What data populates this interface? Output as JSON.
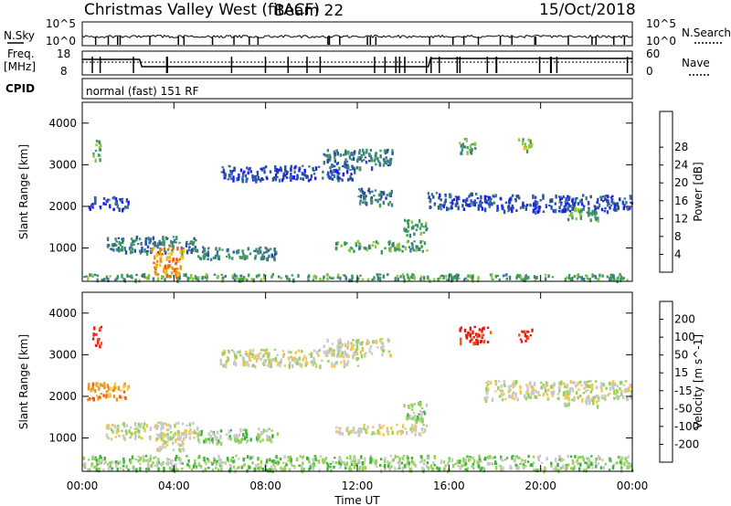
{
  "header": {
    "station": "Christmas Valley West (fitACF)",
    "beam": "Beam 22",
    "date": "15/Oct/2018"
  },
  "strips": {
    "nsky_label": "N.Sky",
    "nsearch_label": "N.Search",
    "nsky_ticks": [
      "10^5",
      "10^0"
    ],
    "nsearch_ticks": [
      "10^5",
      "10^0"
    ],
    "freq_label_1": "Freq.",
    "freq_label_2": "[MHz]",
    "freq_ticks": [
      "18",
      "8"
    ],
    "nave_label": "Nave",
    "nave_ticks": [
      "60",
      "0"
    ],
    "cpid_label": "CPID",
    "cpid_value": "normal (fast) 151 RF"
  },
  "x_axis": {
    "label": "Time UT",
    "ticks": [
      "00:00",
      "04:00",
      "08:00",
      "12:00",
      "16:00",
      "20:00",
      "00:00"
    ]
  },
  "colors": {
    "power": [
      "#1a1aff",
      "#2a4fa0",
      "#3c7a8c",
      "#3e9a5a",
      "#8cc83c",
      "#f0c020",
      "#f08c14",
      "#f05a14",
      "#e82014"
    ],
    "velocity": [
      "#e81414",
      "#f05a14",
      "#f09614",
      "#f0c850",
      "#c8c8c8",
      "#96d25a",
      "#3cb43c",
      "#3c8c64",
      "#2846b4"
    ]
  },
  "chart_data": [
    {
      "type": "heatmap",
      "name": "power-panel",
      "ylabel": "Slant Range [km]",
      "yticks": [
        "1000",
        "2000",
        "3000",
        "4000"
      ],
      "ylim": [
        200,
        4500
      ],
      "xlim_hours": [
        0,
        24
      ],
      "colorbar_label": "Power [dB]",
      "colorbar_ticks": [
        "4",
        "8",
        "12",
        "16",
        "20",
        "24",
        "28"
      ],
      "features": [
        {
          "t0": 0.0,
          "t1": 24.0,
          "r0": 250,
          "r1": 400,
          "level": 3
        },
        {
          "t0": 0.2,
          "t1": 2.0,
          "r0": 1950,
          "r1": 2250,
          "level": 1
        },
        {
          "t0": 0.4,
          "t1": 0.8,
          "r0": 3100,
          "r1": 3600,
          "level": 3
        },
        {
          "t0": 1.0,
          "t1": 5.0,
          "r0": 900,
          "r1": 1300,
          "level": 2
        },
        {
          "t0": 3.0,
          "t1": 4.4,
          "r0": 350,
          "r1": 1050,
          "level": 6
        },
        {
          "t0": 5.0,
          "t1": 8.5,
          "r0": 750,
          "r1": 1050,
          "level": 2
        },
        {
          "t0": 6.0,
          "t1": 12.0,
          "r0": 2650,
          "r1": 3000,
          "level": 1
        },
        {
          "t0": 10.5,
          "t1": 13.5,
          "r0": 2950,
          "r1": 3400,
          "level": 2
        },
        {
          "t0": 12.0,
          "t1": 13.5,
          "r0": 2050,
          "r1": 2450,
          "level": 2
        },
        {
          "t0": 11.0,
          "t1": 15.0,
          "r0": 950,
          "r1": 1200,
          "level": 3
        },
        {
          "t0": 14.0,
          "t1": 15.0,
          "r0": 1300,
          "r1": 1700,
          "level": 3
        },
        {
          "t0": 15.0,
          "t1": 17.5,
          "r0": 1950,
          "r1": 2350,
          "level": 1
        },
        {
          "t0": 16.4,
          "t1": 17.2,
          "r0": 3300,
          "r1": 3650,
          "level": 3
        },
        {
          "t0": 19.0,
          "t1": 19.6,
          "r0": 3350,
          "r1": 3650,
          "level": 4
        },
        {
          "t0": 17.5,
          "t1": 24.0,
          "r0": 1900,
          "r1": 2300,
          "level": 1
        },
        {
          "t0": 21.0,
          "t1": 22.5,
          "r0": 1700,
          "r1": 2000,
          "level": 3
        }
      ]
    },
    {
      "type": "heatmap",
      "name": "velocity-panel",
      "ylabel": "Slant Range [km]",
      "yticks": [
        "1000",
        "2000",
        "3000",
        "4000"
      ],
      "ylim": [
        200,
        4500
      ],
      "xlim_hours": [
        0,
        24
      ],
      "colorbar_label": "Velocity [m s^-1]",
      "colorbar_ticks": [
        "-200",
        "-100",
        "-50",
        "-15",
        "15",
        "50",
        "100",
        "200"
      ],
      "features": [
        {
          "t0": 0.0,
          "t1": 24.0,
          "r0": 250,
          "r1": 600,
          "level": 5
        },
        {
          "t0": 0.2,
          "t1": 2.0,
          "r0": 1950,
          "r1": 2350,
          "level": 2
        },
        {
          "t0": 0.4,
          "t1": 0.8,
          "r0": 3200,
          "r1": 3700,
          "level": 0
        },
        {
          "t0": 1.0,
          "t1": 5.0,
          "r0": 1000,
          "r1": 1400,
          "level": 4
        },
        {
          "t0": 3.2,
          "t1": 4.4,
          "r0": 700,
          "r1": 1150,
          "level": 4
        },
        {
          "t0": 5.0,
          "t1": 8.5,
          "r0": 900,
          "r1": 1250,
          "level": 5
        },
        {
          "t0": 6.0,
          "t1": 12.0,
          "r0": 2750,
          "r1": 3150,
          "level": 4
        },
        {
          "t0": 10.5,
          "t1": 13.5,
          "r0": 3000,
          "r1": 3400,
          "level": 4
        },
        {
          "t0": 11.0,
          "t1": 15.0,
          "r0": 1100,
          "r1": 1350,
          "level": 4
        },
        {
          "t0": 14.0,
          "t1": 15.0,
          "r0": 1400,
          "r1": 1900,
          "level": 5
        },
        {
          "t0": 16.4,
          "t1": 17.8,
          "r0": 3300,
          "r1": 3700,
          "level": 0
        },
        {
          "t0": 19.0,
          "t1": 19.6,
          "r0": 3350,
          "r1": 3650,
          "level": 0
        },
        {
          "t0": 17.5,
          "t1": 24.0,
          "r0": 1950,
          "r1": 2400,
          "level": 4
        },
        {
          "t0": 21.0,
          "t1": 22.5,
          "r0": 1800,
          "r1": 2050,
          "level": 4
        }
      ]
    }
  ]
}
